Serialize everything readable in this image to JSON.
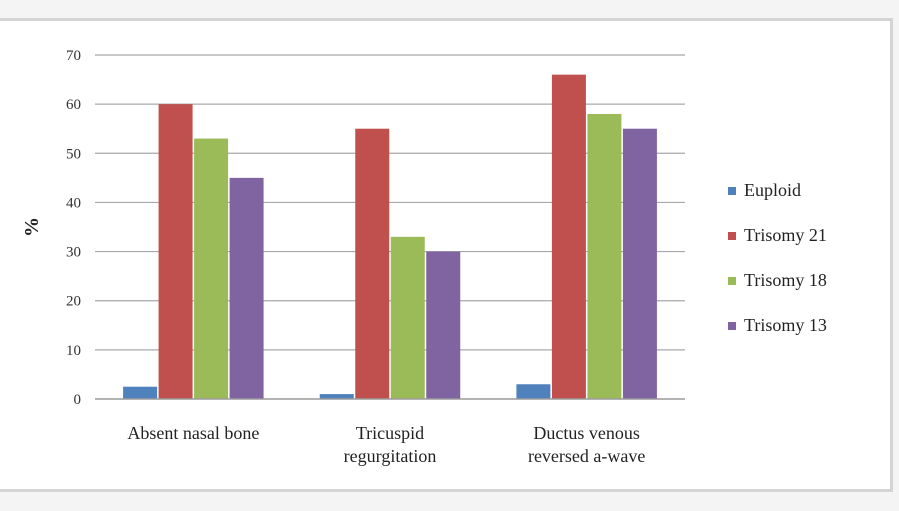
{
  "chart_data": {
    "type": "bar",
    "title": "",
    "xlabel": "",
    "ylabel": "%",
    "ylim": [
      0,
      70
    ],
    "yticks": [
      0,
      10,
      20,
      30,
      40,
      50,
      60,
      70
    ],
    "grid": true,
    "legend_position": "right",
    "categories": [
      [
        "Absent nasal bone"
      ],
      [
        "Tricuspid",
        "regurgitation"
      ],
      [
        "Ductus venous",
        "reversed a-wave"
      ]
    ],
    "series": [
      {
        "name": "Euploid",
        "color": "#4f81bd",
        "values": [
          2.5,
          1,
          3
        ]
      },
      {
        "name": "Trisomy 21",
        "color": "#c0504d",
        "values": [
          60,
          55,
          66
        ]
      },
      {
        "name": "Trisomy 18",
        "color": "#9bbb59",
        "values": [
          53,
          33,
          58
        ]
      },
      {
        "name": "Trisomy 13",
        "color": "#8064a2",
        "values": [
          45,
          30,
          55
        ]
      }
    ]
  }
}
